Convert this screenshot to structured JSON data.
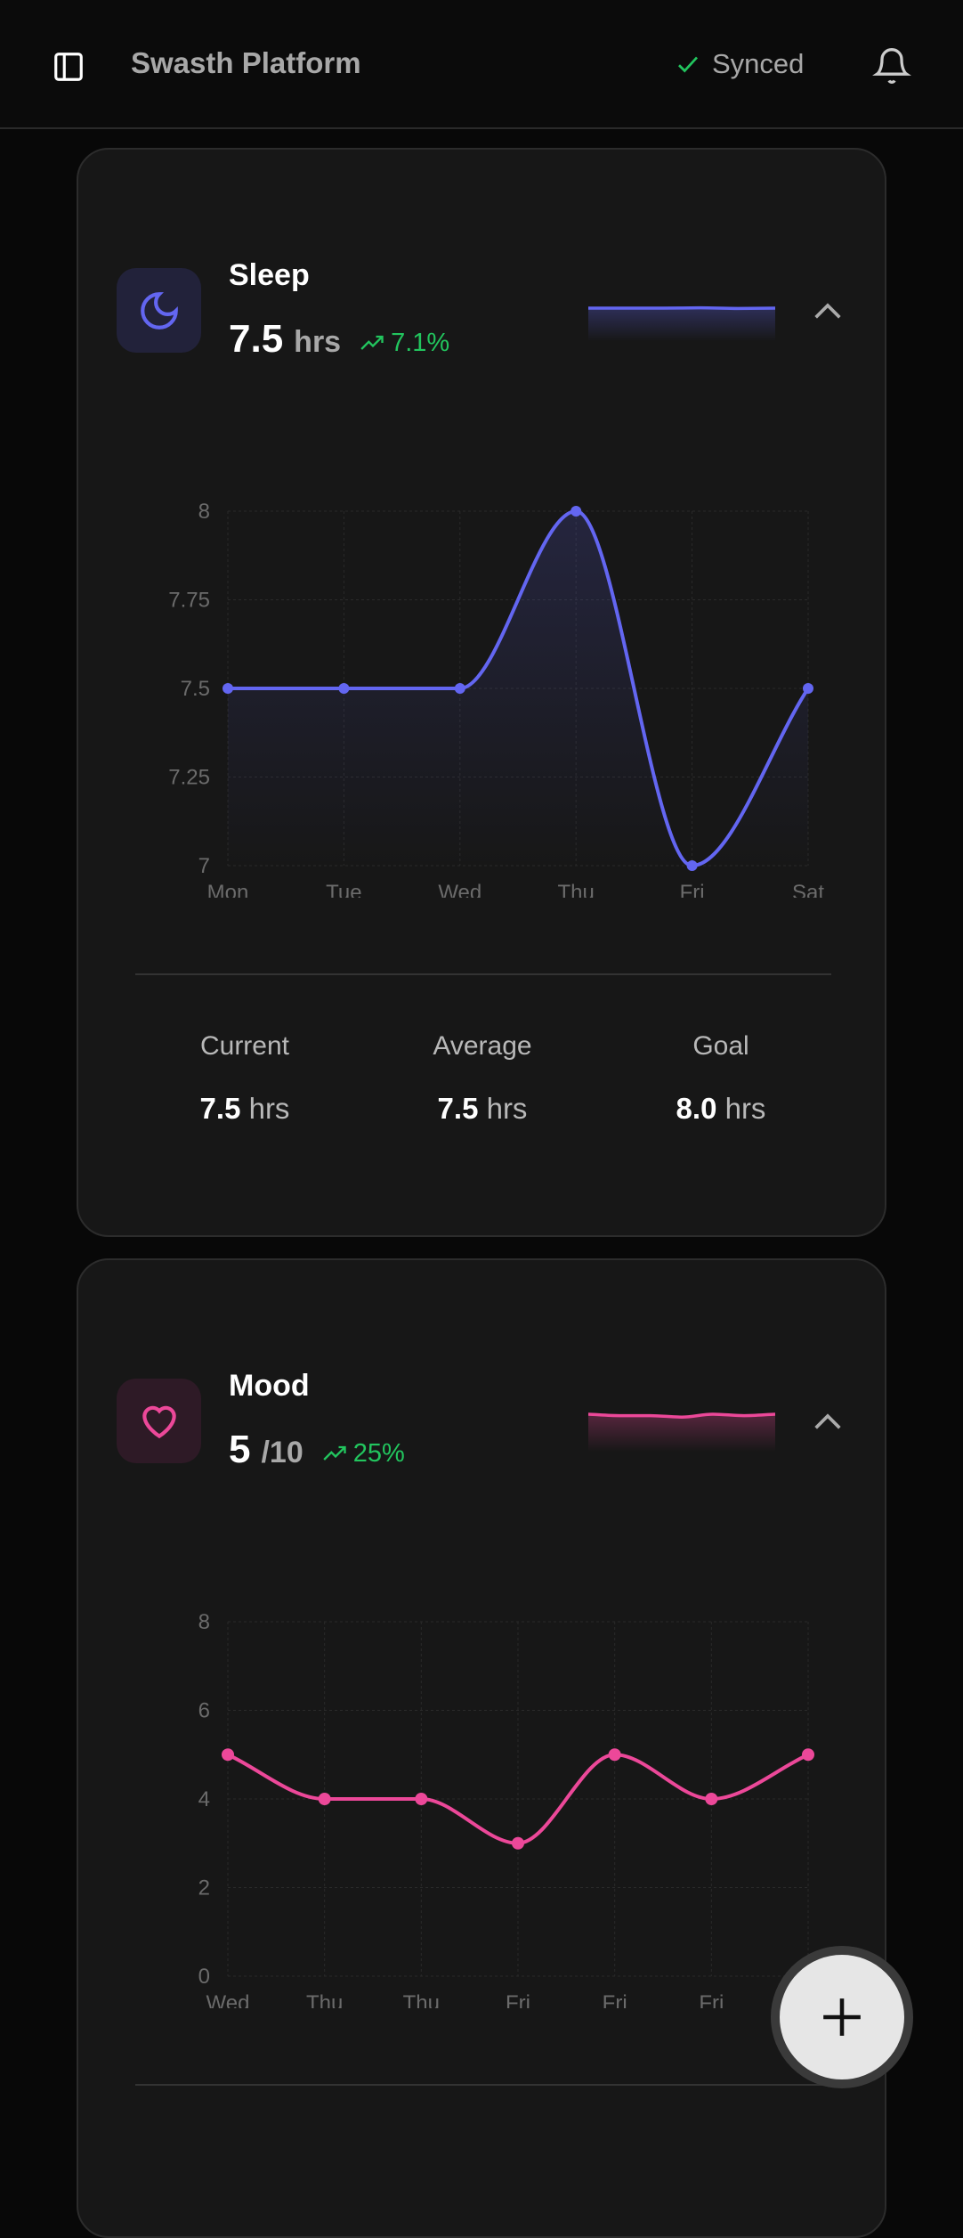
{
  "header": {
    "title": "Swasth Platform",
    "sync_status": "Synced",
    "sync_color": "#22c55e"
  },
  "sleep": {
    "title": "Sleep",
    "value": "7.5",
    "unit": "hrs",
    "trend": "7.1%",
    "color": "#6366f1",
    "stats": [
      {
        "label": "Current",
        "value": "7.5",
        "unit": "hrs"
      },
      {
        "label": "Average",
        "value": "7.5",
        "unit": "hrs"
      },
      {
        "label": "Goal",
        "value": "8.0",
        "unit": "hrs"
      }
    ]
  },
  "mood": {
    "title": "Mood",
    "value": "5",
    "unit": "/10",
    "trend": "25%",
    "color": "#ec4899"
  },
  "fab": {
    "icon": "plus-icon"
  },
  "chart_data": [
    {
      "type": "line",
      "categories": [
        "Mon",
        "Tue",
        "Wed",
        "Thu",
        "Fri",
        "Sat"
      ],
      "values": [
        7.5,
        7.5,
        7.5,
        8,
        7,
        7.5
      ],
      "ylim": [
        7,
        8
      ],
      "yticks": [
        "7",
        "7.25",
        "7.5",
        "7.75",
        "8"
      ],
      "grid": true
    },
    {
      "type": "line",
      "categories": [
        "Wed",
        "Thu",
        "Thu",
        "Fri",
        "Fri",
        "Fri",
        ""
      ],
      "values": [
        5,
        4,
        4,
        3,
        5,
        4,
        5
      ],
      "ylim": [
        0,
        8
      ],
      "yticks": [
        "0",
        "2",
        "4",
        "6",
        "8"
      ],
      "grid": true
    }
  ]
}
